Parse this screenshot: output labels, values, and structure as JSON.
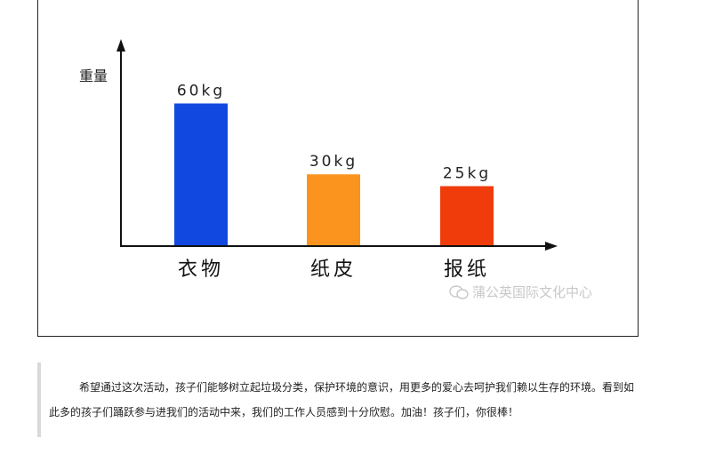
{
  "chart_data": {
    "type": "bar",
    "categories": [
      "衣物",
      "纸皮",
      "报纸"
    ],
    "values": [
      60,
      30,
      25
    ],
    "data_labels": [
      "60kg",
      "30kg",
      "25kg"
    ],
    "colors": [
      "#1048e0",
      "#fb941e",
      "#f03c0a"
    ],
    "title": "",
    "xlabel": "",
    "ylabel": "重量",
    "ylim": [
      0,
      85
    ],
    "grid": false
  },
  "watermark": {
    "text": "蒲公英国际文化中心",
    "icon": "wechat-icon"
  },
  "article": {
    "paragraph": "希望通过这次活动，孩子们能够树立起垃圾分类，保护环境的意识，用更多的爱心去呵护我们赖以生存的环境。看到如此多的孩子们踊跃参与进我们的活动中来，我们的工作人员感到十分欣慰。加油！孩子们，你很棒！"
  }
}
